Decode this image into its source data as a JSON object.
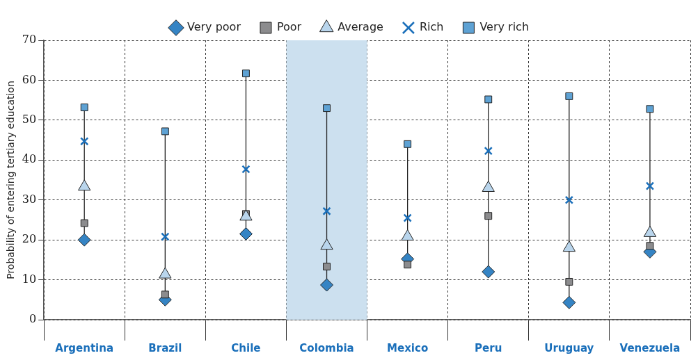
{
  "chart_data": {
    "type": "scatter",
    "ylabel": "Probability of entering tertiary education",
    "categories": [
      "Argentina",
      "Brazil",
      "Chile",
      "Colombia",
      "Mexico",
      "Peru",
      "Uruguay",
      "Venezuela"
    ],
    "ylim": [
      0,
      70
    ],
    "yticks": [
      0,
      10,
      20,
      30,
      40,
      50,
      60,
      70
    ],
    "grid": true,
    "legend": "top",
    "bands": [
      {
        "axis": "x",
        "from": "Colombia",
        "to": "Colombia",
        "color": "#cce0ef"
      }
    ],
    "series": [
      {
        "name": "Very poor",
        "color": "#3584c4",
        "marker": "diamond",
        "values": [
          20,
          5,
          21.5,
          8.7,
          15.2,
          12,
          4.3,
          17
        ]
      },
      {
        "name": "Poor",
        "color": "#8c8c8e",
        "marker": "square",
        "values": [
          24.2,
          6.3,
          26.5,
          13.3,
          13.8,
          26,
          9.5,
          18.5
        ]
      },
      {
        "name": "Average",
        "color": "#b9d5ec",
        "marker": "triangle",
        "values": [
          33.3,
          11.3,
          25.8,
          18.5,
          20.8,
          33,
          18,
          21.7
        ]
      },
      {
        "name": "Rich",
        "color": "#1a6fba",
        "marker": "cross",
        "values": [
          44.7,
          20.8,
          37.7,
          27.2,
          25.5,
          42.3,
          30,
          33.5
        ]
      },
      {
        "name": "Very rich",
        "color": "#5ea2d4",
        "marker": "square",
        "values": [
          53.2,
          47.2,
          61.7,
          53,
          44,
          55.2,
          56,
          52.8
        ]
      }
    ]
  }
}
